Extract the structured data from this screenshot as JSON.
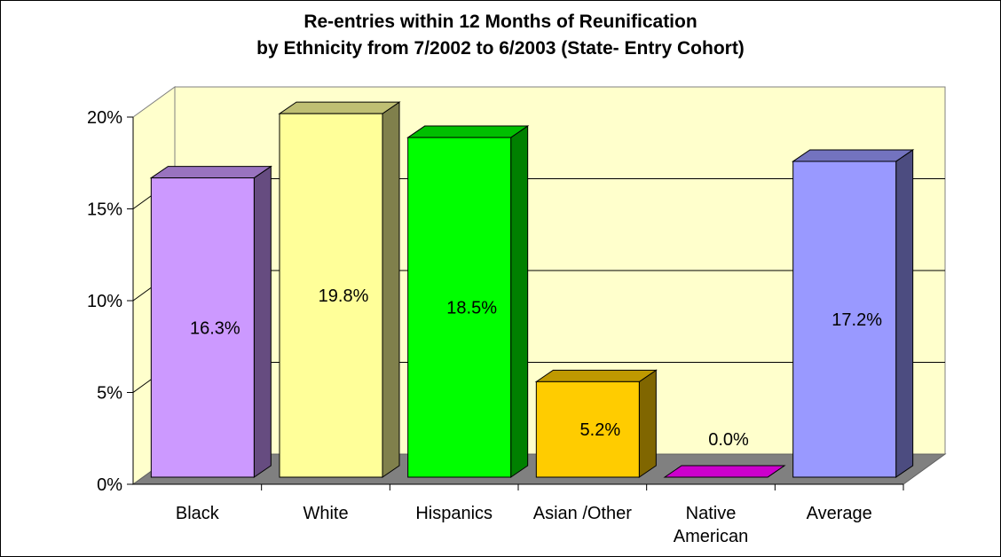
{
  "chart_data": {
    "type": "bar",
    "title_line1": "Re-entries within 12 Months of Reunification",
    "title_line2": "by Ethnicity from 7/2002 to 6/2003 (State- Entry Cohort)",
    "categories": [
      [
        "Black"
      ],
      [
        "White"
      ],
      [
        "Hispanics"
      ],
      [
        "Asian /Other"
      ],
      [
        "Native",
        "American"
      ],
      [
        "Average"
      ]
    ],
    "values": [
      16.3,
      19.8,
      18.5,
      5.2,
      0.0,
      17.2
    ],
    "data_labels": [
      "16.3%",
      "19.8%",
      "18.5%",
      "5.2%",
      "0.0%",
      "17.2%"
    ],
    "y_ticks": [
      "0%",
      "5%",
      "10%",
      "15%",
      "20%"
    ],
    "ylim": [
      0,
      20
    ],
    "grid": true,
    "legend": "none",
    "colors": {
      "front": [
        "#cc99ff",
        "#ffff99",
        "#00ff00",
        "#ffcc00",
        "#cc00cc",
        "#9999ff"
      ],
      "side": [
        "#664c80",
        "#80804c",
        "#008000",
        "#806600",
        "#660066",
        "#4c4c80"
      ],
      "top": [
        "#9973bf",
        "#bfbf73",
        "#00bf00",
        "#bf9900",
        "#990099",
        "#7373bf"
      ],
      "wall": "#ffffcc",
      "floor": "#808080",
      "grid": "#000000"
    }
  }
}
